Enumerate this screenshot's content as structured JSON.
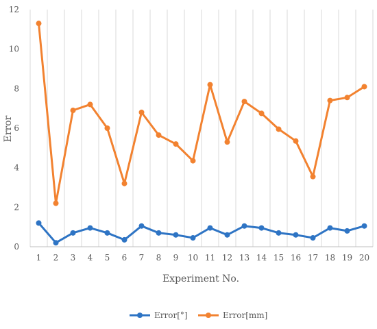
{
  "chart_data": {
    "type": "line",
    "title": "",
    "xlabel": "Experiment No.",
    "ylabel": "Error",
    "x": [
      1,
      2,
      3,
      4,
      5,
      6,
      7,
      8,
      9,
      10,
      11,
      12,
      13,
      14,
      15,
      16,
      17,
      18,
      19,
      20
    ],
    "ylim": [
      0,
      12
    ],
    "yticks": [
      0,
      2,
      4,
      6,
      8,
      10,
      12
    ],
    "grid": "vertical",
    "legend": "bottom",
    "series": [
      {
        "name": "Error[°]",
        "color": "#2E74C4",
        "values": [
          1.2,
          0.2,
          0.7,
          0.95,
          0.7,
          0.35,
          1.05,
          0.7,
          0.6,
          0.45,
          0.95,
          0.6,
          1.05,
          0.95,
          0.7,
          0.6,
          0.45,
          0.95,
          0.8,
          1.05
        ]
      },
      {
        "name": "Error[mm]",
        "color": "#F28230",
        "values": [
          11.3,
          2.2,
          6.9,
          7.2,
          6.0,
          3.2,
          6.8,
          5.65,
          5.2,
          4.35,
          8.2,
          5.3,
          7.35,
          6.75,
          5.95,
          5.35,
          3.55,
          7.4,
          7.55,
          8.1
        ]
      }
    ]
  }
}
